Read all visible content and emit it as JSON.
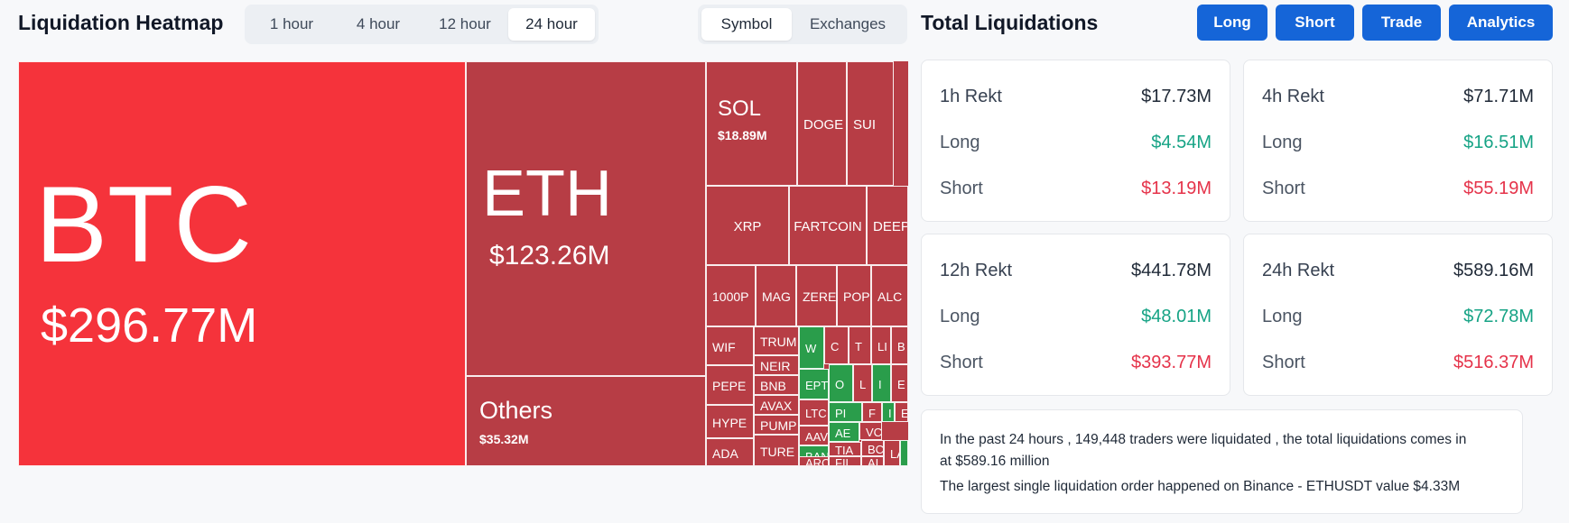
{
  "header": {
    "heatmap_title": "Liquidation Heatmap",
    "time_options": [
      "1 hour",
      "4 hour",
      "12 hour",
      "24 hour"
    ],
    "time_selected": "24 hour",
    "view_options": [
      "Symbol",
      "Exchanges"
    ],
    "view_selected": "Symbol",
    "totals_title": "Total Liquidations",
    "buttons": [
      "Long",
      "Short",
      "Trade",
      "Analytics"
    ]
  },
  "colors": {
    "dominant_red": "#f5333b",
    "red": "#b73d45",
    "green": "#2a9d4b",
    "button_blue": "#1565d8"
  },
  "treemap": {
    "tiles": [
      {
        "symbol": "BTC",
        "value": "$296.77M",
        "color": "dominant_red"
      },
      {
        "symbol": "ETH",
        "value": "$123.26M",
        "color": "red"
      },
      {
        "symbol": "Others",
        "value": "$35.32M",
        "color": "red"
      },
      {
        "symbol": "SOL",
        "value": "$18.89M",
        "color": "red"
      },
      {
        "symbol": "DOGE",
        "value": "",
        "color": "red"
      },
      {
        "symbol": "SUI",
        "value": "",
        "color": "red"
      },
      {
        "symbol": "XRP",
        "value": "",
        "color": "red"
      },
      {
        "symbol": "FARTCOIN",
        "value": "",
        "color": "red"
      },
      {
        "symbol": "DEEP",
        "value": "",
        "color": "red"
      },
      {
        "symbol": "1000P",
        "value": "",
        "color": "red"
      },
      {
        "symbol": "MAG",
        "value": "",
        "color": "red"
      },
      {
        "symbol": "ZERE",
        "value": "",
        "color": "red"
      },
      {
        "symbol": "POP",
        "value": "",
        "color": "red"
      },
      {
        "symbol": "ALC",
        "value": "",
        "color": "red"
      },
      {
        "symbol": "WIF",
        "value": "",
        "color": "red"
      },
      {
        "symbol": "PEPE",
        "value": "",
        "color": "red"
      },
      {
        "symbol": "HYPE",
        "value": "",
        "color": "red"
      },
      {
        "symbol": "ADA",
        "value": "",
        "color": "red"
      },
      {
        "symbol": "TRUM",
        "value": "",
        "color": "red"
      },
      {
        "symbol": "NEIR",
        "value": "",
        "color": "red"
      },
      {
        "symbol": "BNB",
        "value": "",
        "color": "red"
      },
      {
        "symbol": "AVAX",
        "value": "",
        "color": "red"
      },
      {
        "symbol": "PUMP",
        "value": "",
        "color": "red"
      },
      {
        "symbol": "TURE",
        "value": "",
        "color": "red"
      },
      {
        "symbol": "W",
        "value": "",
        "color": "green"
      },
      {
        "symbol": "C",
        "value": "",
        "color": "red"
      },
      {
        "symbol": "T",
        "value": "",
        "color": "red"
      },
      {
        "symbol": "LI",
        "value": "",
        "color": "red"
      },
      {
        "symbol": "B",
        "value": "",
        "color": "red"
      },
      {
        "symbol": "EPT",
        "value": "",
        "color": "green"
      },
      {
        "symbol": "O",
        "value": "",
        "color": "green"
      },
      {
        "symbol": "L",
        "value": "",
        "color": "red"
      },
      {
        "symbol": "I",
        "value": "",
        "color": "green"
      },
      {
        "symbol": "E",
        "value": "",
        "color": "red"
      },
      {
        "symbol": "LTC",
        "value": "",
        "color": "red"
      },
      {
        "symbol": "PI",
        "value": "",
        "color": "green"
      },
      {
        "symbol": "F",
        "value": "",
        "color": "red"
      },
      {
        "symbol": "I",
        "value": "",
        "color": "green"
      },
      {
        "symbol": "E",
        "value": "",
        "color": "red"
      },
      {
        "symbol": "AAV",
        "value": "",
        "color": "red"
      },
      {
        "symbol": "AE",
        "value": "",
        "color": "green"
      },
      {
        "symbol": "VC",
        "value": "",
        "color": "red"
      },
      {
        "symbol": "BAN",
        "value": "",
        "color": "green"
      },
      {
        "symbol": "TIA",
        "value": "",
        "color": "red"
      },
      {
        "symbol": "BC",
        "value": "",
        "color": "red"
      },
      {
        "symbol": "ARC",
        "value": "",
        "color": "red"
      },
      {
        "symbol": "FIL",
        "value": "",
        "color": "red"
      },
      {
        "symbol": "AI",
        "value": "",
        "color": "red"
      },
      {
        "symbol": "LA",
        "value": "",
        "color": "red"
      },
      {
        "symbol": "",
        "value": "",
        "color": "green"
      }
    ]
  },
  "stats": [
    {
      "label": "1h Rekt",
      "total": "$17.73M",
      "long_label": "Long",
      "long": "$4.54M",
      "short_label": "Short",
      "short": "$13.19M"
    },
    {
      "label": "4h Rekt",
      "total": "$71.71M",
      "long_label": "Long",
      "long": "$16.51M",
      "short_label": "Short",
      "short": "$55.19M"
    },
    {
      "label": "12h Rekt",
      "total": "$441.78M",
      "long_label": "Long",
      "long": "$48.01M",
      "short_label": "Short",
      "short": "$393.77M"
    },
    {
      "label": "24h Rekt",
      "total": "$589.16M",
      "long_label": "Long",
      "long": "$72.78M",
      "short_label": "Short",
      "short": "$516.37M"
    }
  ],
  "summary": {
    "line1": "In the past 24 hours , 149,448 traders were liquidated , the total liquidations comes in",
    "line2": "at $589.16 million",
    "line3": "The largest single liquidation order happened on Binance - ETHUSDT value $4.33M"
  }
}
